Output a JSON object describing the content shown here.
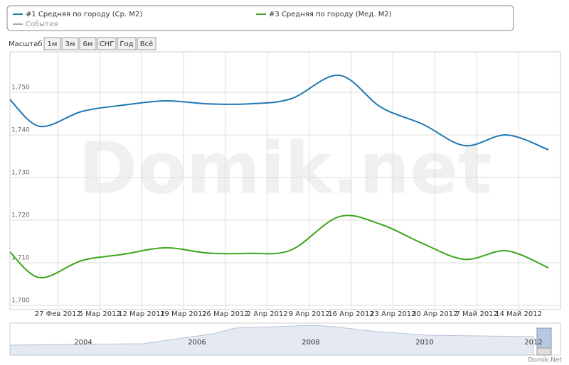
{
  "chart_data": {
    "type": "line",
    "legend": {
      "events": "События"
    },
    "zoom": {
      "label": "Масштаб",
      "buttons": [
        "1м",
        "3м",
        "6м",
        "СНГ",
        "Год",
        "Всё"
      ]
    },
    "watermark": "Domik.net",
    "credit": "Domik.Net",
    "navigator": {
      "labels": [
        "2004",
        "2006",
        "2008",
        "2010",
        "2012"
      ]
    },
    "x": [
      "2012-02-19",
      "2012-02-24",
      "2012-03-02",
      "2012-03-09",
      "2012-03-16",
      "2012-03-23",
      "2012-03-30",
      "2012-04-06",
      "2012-04-14",
      "2012-04-21",
      "2012-04-28",
      "2012-05-05",
      "2012-05-12",
      "2012-05-19"
    ],
    "xlim": [
      "2012-02-19",
      "2012-05-21"
    ],
    "xticks": [
      {
        "value": "2012-02-27",
        "label": "27 Фев 2012"
      },
      {
        "value": "2012-03-05",
        "label": "5 Мар 2012"
      },
      {
        "value": "2012-03-12",
        "label": "12 Мар 2012"
      },
      {
        "value": "2012-03-19",
        "label": "19 Мар 2012"
      },
      {
        "value": "2012-03-26",
        "label": "26 Мар 2012"
      },
      {
        "value": "2012-04-02",
        "label": "2 Апр 2012"
      },
      {
        "value": "2012-04-09",
        "label": "9 Апр 2012"
      },
      {
        "value": "2012-04-16",
        "label": "16 Апр 2012"
      },
      {
        "value": "2012-04-23",
        "label": "23 Апр 2012"
      },
      {
        "value": "2012-04-30",
        "label": "30 Апр 2012"
      },
      {
        "value": "2012-05-07",
        "label": "7 Май 2012"
      },
      {
        "value": "2012-05-14",
        "label": "14 Май 2012"
      }
    ],
    "ylim": [
      1699,
      1759.5
    ],
    "yticks": [
      {
        "value": 1700,
        "label": "1,700"
      },
      {
        "value": 1710,
        "label": "1,710"
      },
      {
        "value": 1720,
        "label": "1,720"
      },
      {
        "value": 1730,
        "label": "1,730"
      },
      {
        "value": 1740,
        "label": "1,740"
      },
      {
        "value": 1750,
        "label": "1,750"
      }
    ],
    "grid": true,
    "series": [
      {
        "name": "#1 Средняя по городу (Ср. М2)",
        "color": "#1f77b4",
        "values": [
          1748.3,
          1742,
          1745.5,
          1747,
          1748,
          1747.3,
          1747.3,
          1748.5,
          1754,
          1746.5,
          1742.5,
          1737.5,
          1740,
          1736.5
        ]
      },
      {
        "name": "#3 Средняя по городу (Мед. М2)",
        "color": "#3aa61c",
        "values": [
          1712.5,
          1706.5,
          1710.5,
          1712,
          1713.5,
          1712.3,
          1712.2,
          1713,
          1720.8,
          1719,
          1714.5,
          1710.8,
          1712.8,
          1708.8
        ]
      }
    ]
  }
}
